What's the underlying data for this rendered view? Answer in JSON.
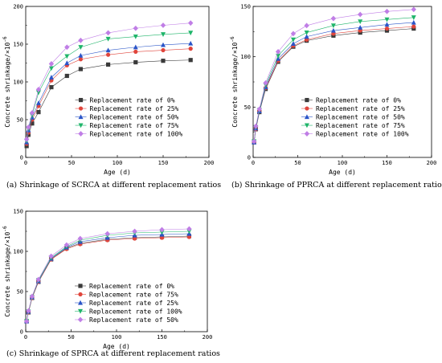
{
  "chart_data": [
    {
      "type": "line",
      "caption": "(a) Shrinkage of SCRCA at different replacement ratios",
      "xlabel": "Age (d)",
      "ylabel": "Concrete shrinkage/×10",
      "ylabel_exp": "-6",
      "xlim": [
        0,
        200
      ],
      "ylim": [
        0,
        200
      ],
      "xticks": [
        0,
        50,
        100,
        150,
        200
      ],
      "yticks": [
        0,
        50,
        100,
        150,
        200
      ],
      "legend_position": "bottom-right",
      "x": [
        1,
        3,
        7,
        14,
        28,
        45,
        60,
        90,
        120,
        150,
        180
      ],
      "series": [
        {
          "name": "Replacement rate of 0%",
          "color": "#3a3a3a",
          "marker": "square",
          "values": [
            15,
            30,
            45,
            60,
            93,
            108,
            117,
            123,
            126,
            128,
            129
          ]
        },
        {
          "name": "Replacement rate of 25%",
          "color": "#e0453c",
          "marker": "circle",
          "values": [
            18,
            33,
            50,
            68,
            102,
            122,
            130,
            136,
            140,
            142,
            144
          ]
        },
        {
          "name": "Replacement rate of 50%",
          "color": "#2a55c8",
          "marker": "triangle-up",
          "values": [
            20,
            36,
            53,
            72,
            106,
            125,
            135,
            142,
            146,
            149,
            151
          ]
        },
        {
          "name": "Replacement rate of 75%",
          "color": "#1fb56a",
          "marker": "triangle-down",
          "values": [
            22,
            38,
            56,
            86,
            118,
            134,
            146,
            157,
            160,
            163,
            165
          ]
        },
        {
          "name": "Replacement rate of 100%",
          "color": "#c07ee6",
          "marker": "diamond",
          "values": [
            24,
            40,
            59,
            90,
            124,
            146,
            155,
            165,
            171,
            175,
            178
          ]
        }
      ]
    },
    {
      "type": "line",
      "caption": "(b) Shrinkage of PPRCA at different replacement ratios",
      "xlabel": "Age (d)",
      "ylabel": "Concrete shrinkage/×10",
      "ylabel_exp": "-6",
      "xlim": [
        0,
        200
      ],
      "ylim": [
        0,
        150
      ],
      "xticks": [
        0,
        50,
        100,
        150,
        200
      ],
      "yticks": [
        0,
        50,
        100,
        150
      ],
      "legend_position": "bottom-right",
      "x": [
        1,
        3,
        7,
        14,
        28,
        45,
        60,
        90,
        120,
        150,
        180
      ],
      "series": [
        {
          "name": "Replacement rate of 0%",
          "color": "#3a3a3a",
          "marker": "square",
          "values": [
            15,
            28,
            45,
            68,
            95,
            110,
            116,
            121,
            124,
            126,
            128
          ]
        },
        {
          "name": "Replacement rate of 25%",
          "color": "#e0453c",
          "marker": "circle",
          "values": [
            15,
            28,
            46,
            69,
            96,
            111,
            117,
            123,
            126,
            128,
            130
          ]
        },
        {
          "name": "Replacement rate of 50%",
          "color": "#2a55c8",
          "marker": "triangle-up",
          "values": [
            15,
            29,
            46,
            70,
            98,
            113,
            120,
            126,
            129,
            132,
            134
          ]
        },
        {
          "name": "Replacement rate of 75%",
          "color": "#1fb56a",
          "marker": "triangle-down",
          "values": [
            16,
            30,
            47,
            72,
            101,
            117,
            124,
            131,
            135,
            137,
            139
          ]
        },
        {
          "name": "Replacement rate of 100%",
          "color": "#c07ee6",
          "marker": "diamond",
          "values": [
            16,
            31,
            48,
            74,
            105,
            123,
            131,
            138,
            142,
            145,
            147
          ]
        }
      ]
    },
    {
      "type": "line",
      "caption": "(c) Shrinkage of SPRCA at different replacement ratios",
      "xlabel": "Age (d)",
      "ylabel": "Concrete shrinkage/×10",
      "ylabel_exp": "-6",
      "xlim": [
        0,
        200
      ],
      "ylim": [
        0,
        150
      ],
      "xticks": [
        0,
        50,
        100,
        150,
        200
      ],
      "yticks": [
        0,
        50,
        100,
        150
      ],
      "legend_position": "bottom-right",
      "x": [
        1,
        3,
        7,
        14,
        28,
        45,
        60,
        90,
        120,
        150,
        180
      ],
      "series": [
        {
          "name": "Replacement rate of 0%",
          "color": "#3a3a3a",
          "marker": "square",
          "values": [
            13,
            24,
            42,
            62,
            90,
            104,
            110,
            115,
            117,
            118,
            119
          ]
        },
        {
          "name": "Replacement rate of 75%",
          "color": "#e0453c",
          "marker": "circle",
          "values": [
            13,
            24,
            42,
            62,
            90,
            103,
            109,
            114,
            116,
            117,
            118
          ]
        },
        {
          "name": "Replacement rate of 25%",
          "color": "#2a55c8",
          "marker": "triangle-up",
          "values": [
            13,
            25,
            43,
            63,
            91,
            105,
            112,
            117,
            120,
            121,
            122
          ]
        },
        {
          "name": "Replacement rate of 100%",
          "color": "#1fb56a",
          "marker": "triangle-down",
          "values": [
            13,
            25,
            43,
            64,
            92,
            106,
            114,
            120,
            123,
            124,
            125
          ]
        },
        {
          "name": "Replacement rate of 50%",
          "color": "#c07ee6",
          "marker": "diamond",
          "values": [
            13,
            26,
            44,
            65,
            94,
            108,
            116,
            122,
            125,
            127,
            128
          ]
        }
      ]
    }
  ]
}
